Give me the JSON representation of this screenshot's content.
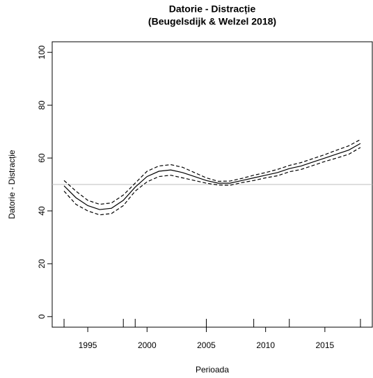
{
  "chart_data": {
    "type": "line",
    "title": "Datorie - Distracție",
    "subtitle": "(Beugelsdijk & Welzel 2018)",
    "xlabel": "Perioada",
    "ylabel": "Datorie - Distracție",
    "x": [
      1993,
      1994,
      1995,
      1996,
      1997,
      1998,
      1999,
      2000,
      2001,
      2002,
      2003,
      2004,
      2005,
      2006,
      2007,
      2008,
      2009,
      2010,
      2011,
      2012,
      2013,
      2014,
      2015,
      2016,
      2017,
      2018
    ],
    "series": [
      {
        "color": "#000000",
        "dash": false,
        "values": [
          49.5,
          45,
          42,
          40.5,
          41,
          44,
          49,
          53,
          55,
          55.5,
          54.5,
          53,
          51.5,
          50.5,
          50.5,
          51.5,
          52.5,
          53.5,
          54.5,
          56,
          57,
          58.5,
          60,
          61.5,
          63,
          65.5
        ]
      },
      {
        "color": "#000000",
        "dash": true,
        "values": [
          51.5,
          47.5,
          44,
          42.5,
          43,
          46,
          50.5,
          55,
          57,
          57.5,
          56.5,
          54.5,
          52.5,
          51.2,
          51.3,
          52.3,
          53.5,
          54.5,
          55.7,
          57.2,
          58.3,
          59.8,
          61.3,
          63,
          64.6,
          67
        ]
      },
      {
        "color": "#000000",
        "dash": true,
        "values": [
          47.5,
          42.5,
          40,
          38.5,
          39,
          42,
          47.5,
          51,
          53,
          53.5,
          52.5,
          51.5,
          50.5,
          49.8,
          49.7,
          50.7,
          51.5,
          52.5,
          53.3,
          54.8,
          55.7,
          57.2,
          58.7,
          60,
          61.4,
          64
        ]
      }
    ],
    "hline": 50,
    "hline_color": "#bebebe",
    "rug": [
      1993,
      1998,
      1999,
      2005,
      2009,
      2012,
      2018
    ],
    "xlim": [
      1992,
      2019
    ],
    "xticks": [
      1995,
      2000,
      2005,
      2010,
      2015
    ],
    "ylim": [
      -4,
      104
    ],
    "yticks": [
      0,
      20,
      40,
      60,
      80,
      100
    ]
  }
}
